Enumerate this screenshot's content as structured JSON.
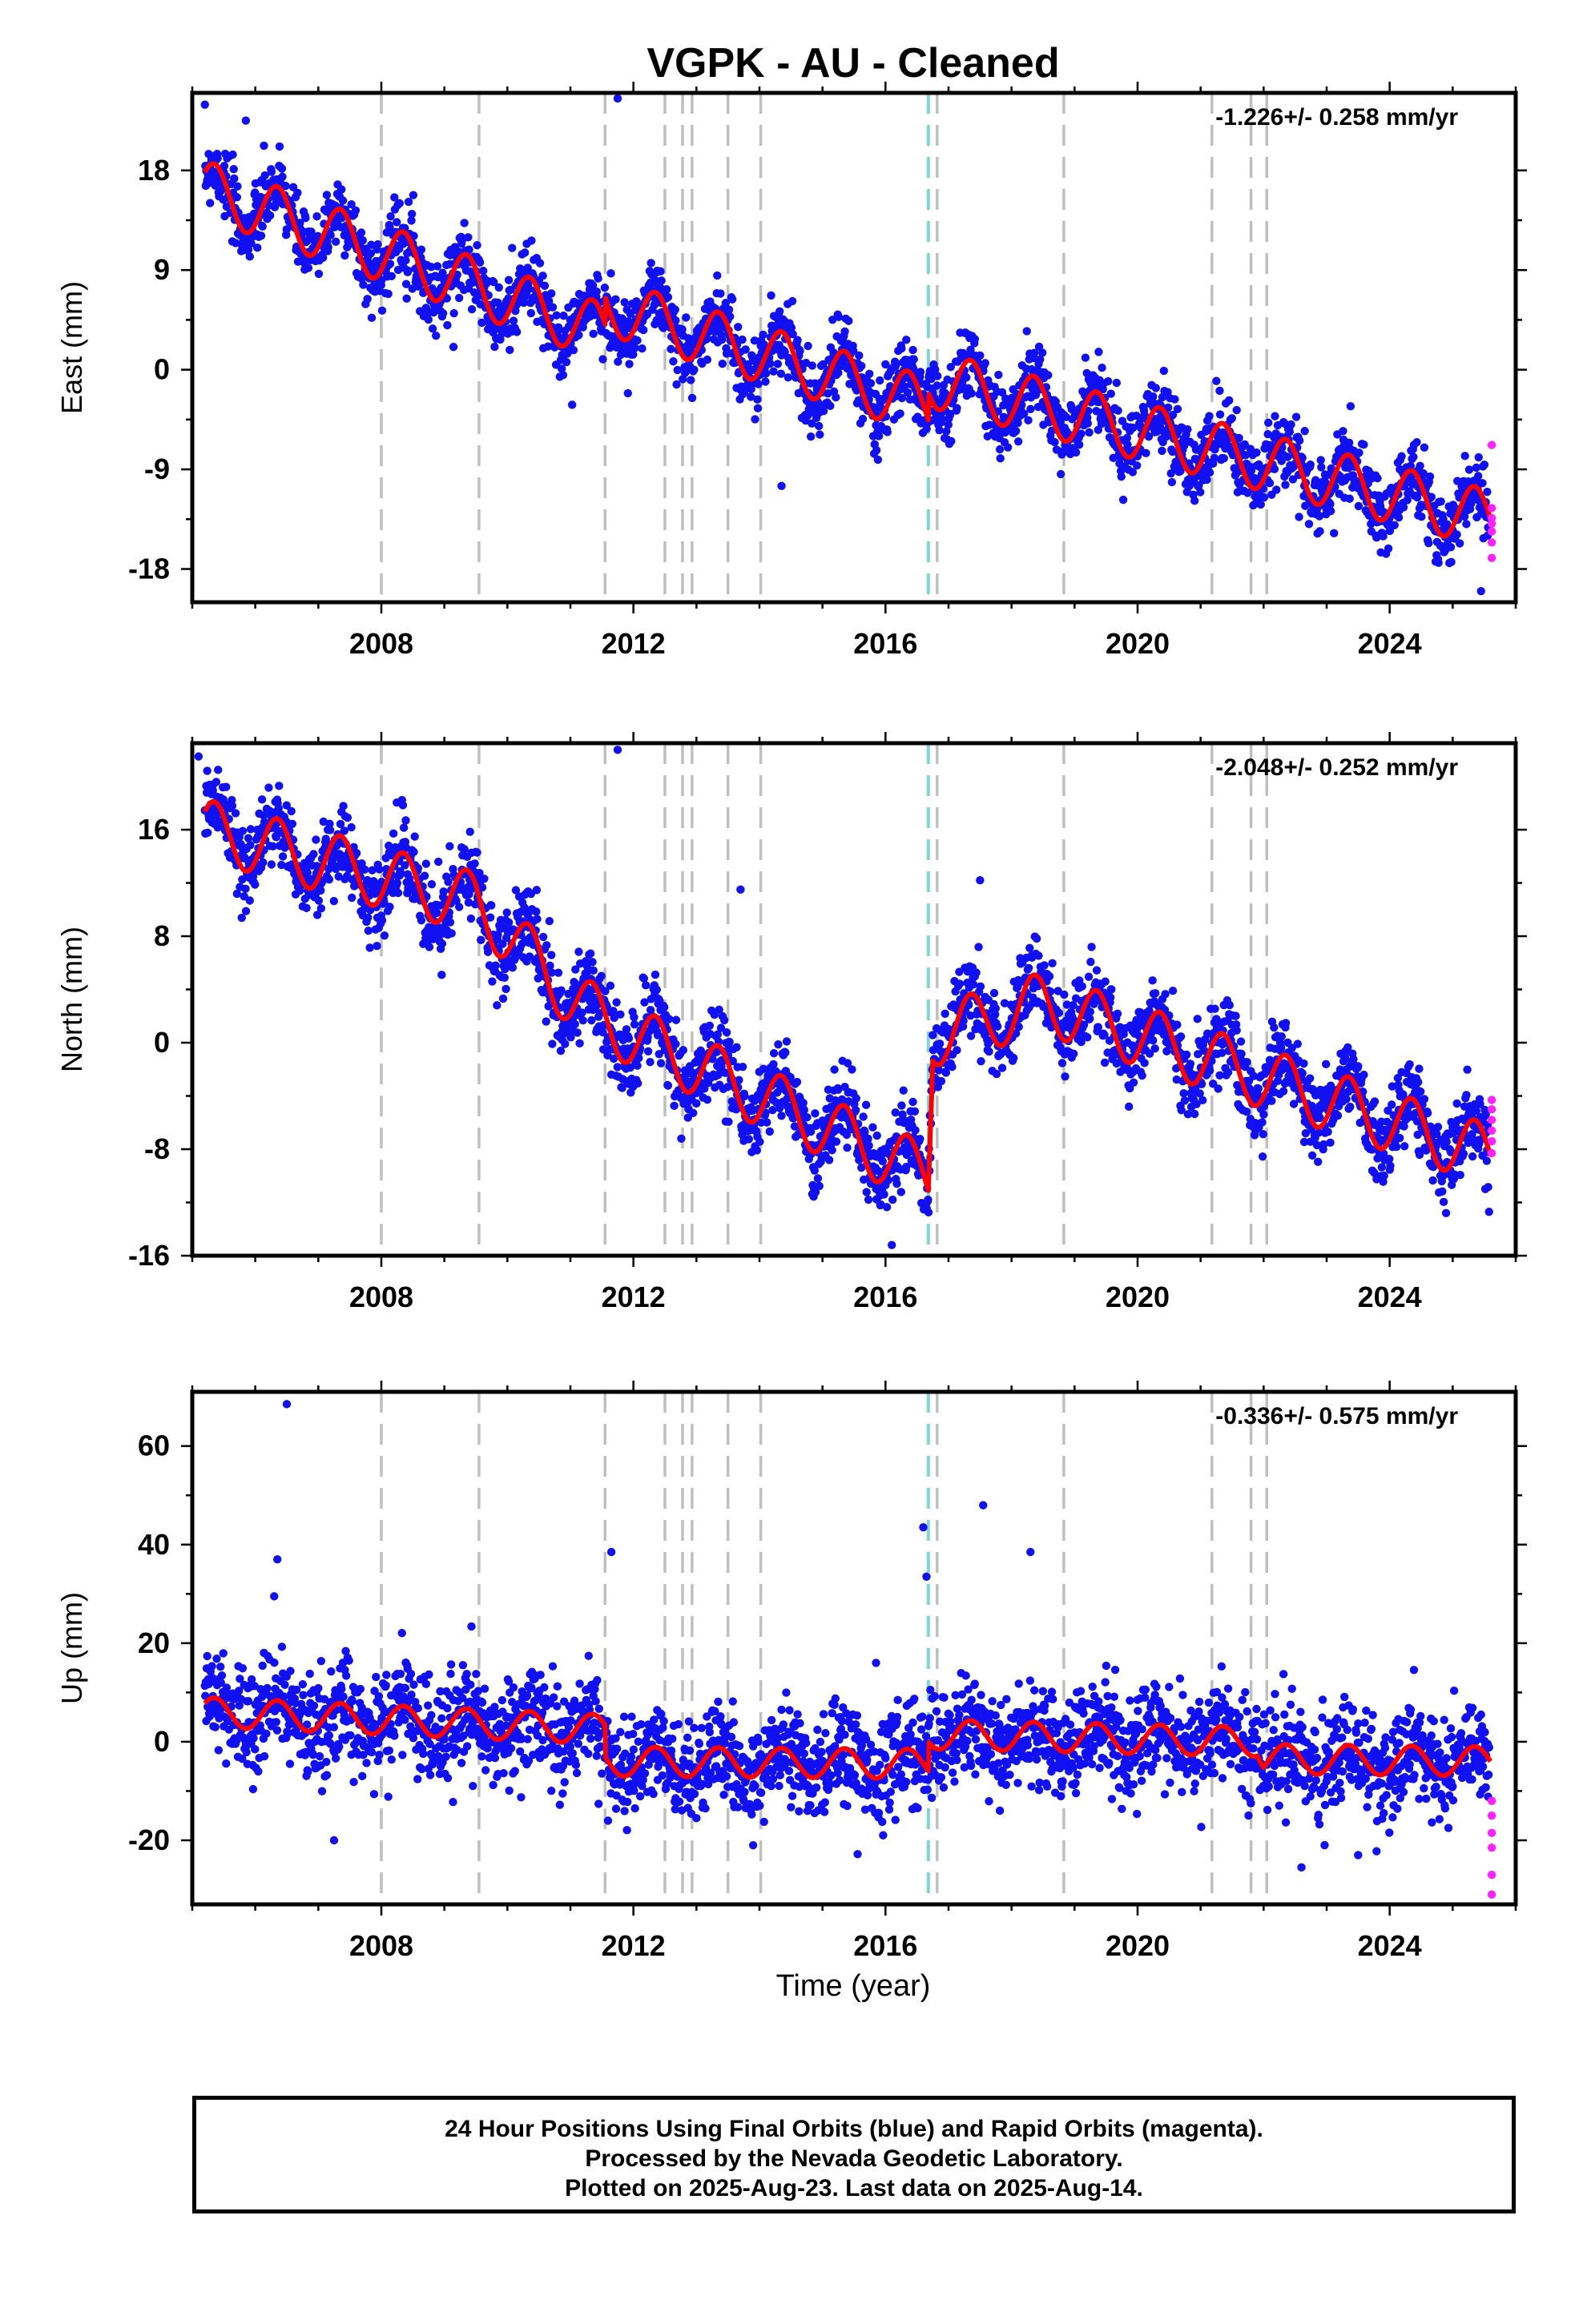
{
  "chart_data": {
    "type": "scatter",
    "title": "VGPK  - AU - Cleaned",
    "xlabel": "Time (year)",
    "xlim": [
      2005.0,
      2026.0
    ],
    "x_ticks": [
      2008,
      2012,
      2016,
      2020,
      2024
    ],
    "x_tick_labels": [
      "2008",
      "2012",
      "2016",
      "2020",
      "2024"
    ],
    "event_lines": [
      2008.0,
      2009.55,
      2011.55,
      2012.5,
      2012.78,
      2012.93,
      2013.5,
      2014.02,
      2016.82,
      2018.83,
      2021.18,
      2021.8,
      2022.05
    ],
    "earthquake_lines": [
      2016.68
    ],
    "legend_colors": {
      "final": "#1010f0",
      "rapid": "#ff22ff",
      "model": "#ff0000",
      "event": "#bfbfbf",
      "earthquake": "#7fd6d6"
    },
    "panels": [
      {
        "key": "east",
        "ylabel": "East (mm)",
        "ylim": [
          -21.0,
          25.0
        ],
        "y_ticks": [
          18,
          9,
          0,
          -9,
          -18
        ],
        "y_tick_labels": [
          "18",
          "9",
          "0",
          "-9",
          "-18"
        ],
        "rate_label": "-1.226+/- 0.258 mm/yr",
        "series": [
          {
            "name": "final",
            "type": "scatter",
            "trend": [
              [
                2005.2,
                16.3
              ],
              [
                2011.55,
                3.3
              ],
              [
                2011.56,
                5.8
              ],
              [
                2016.68,
                -3.3
              ],
              [
                2016.69,
                -0.8
              ],
              [
                2025.6,
                -13.5
              ]
            ],
            "amplitude": 2.4,
            "scatter_sd": 1.6
          },
          {
            "name": "model",
            "type": "line",
            "trend": [
              [
                2005.2,
                16.3
              ],
              [
                2011.55,
                3.3
              ],
              [
                2011.56,
                5.8
              ],
              [
                2016.68,
                -3.3
              ],
              [
                2016.69,
                -0.8
              ],
              [
                2025.6,
                -13.5
              ]
            ],
            "amplitude": 2.6
          },
          {
            "name": "rapid",
            "type": "scatter",
            "x": [
              2025.62,
              2025.62,
              2025.62,
              2025.62,
              2025.62,
              2025.62,
              2025.62
            ],
            "y": [
              -6.8,
              -12.5,
              -13.4,
              -13.9,
              -14.6,
              -15.6,
              -17.0
            ]
          }
        ],
        "outliers": [
          [
            2005.85,
            22.5
          ],
          [
            2011.75,
            24.5
          ],
          [
            2014.35,
            -10.5
          ],
          [
            2025.45,
            -20.0
          ]
        ]
      },
      {
        "key": "north",
        "ylabel": "North (mm)",
        "ylim": [
          -16.0,
          22.5
        ],
        "y_ticks": [
          16,
          8,
          0,
          -8,
          -16
        ],
        "y_tick_labels": [
          "16",
          "8",
          "0",
          "-8",
          "-16"
        ],
        "rate_label": "-2.048+/- 0.252 mm/yr",
        "series": [
          {
            "name": "final",
            "type": "scatter",
            "trend": [
              [
                2005.2,
                16.0
              ],
              [
                2009.5,
                10.5
              ],
              [
                2011.0,
                3.5
              ],
              [
                2011.55,
                1.5
              ],
              [
                2016.68,
                -10.0
              ],
              [
                2016.75,
                0.5
              ],
              [
                2018.5,
                3.0
              ],
              [
                2025.6,
                -8.5
              ]
            ],
            "amplitude": 2.2,
            "scatter_sd": 1.5
          },
          {
            "name": "model",
            "type": "line",
            "trend": [
              [
                2005.2,
                16.0
              ],
              [
                2009.5,
                10.5
              ],
              [
                2011.0,
                3.5
              ],
              [
                2011.55,
                1.5
              ],
              [
                2016.68,
                -10.0
              ],
              [
                2016.75,
                0.5
              ],
              [
                2018.5,
                3.0
              ],
              [
                2025.6,
                -8.5
              ]
            ],
            "amplitude": 2.3
          },
          {
            "name": "rapid",
            "type": "scatter",
            "x": [
              2025.62,
              2025.62,
              2025.62,
              2025.62,
              2025.62,
              2025.62
            ],
            "y": [
              -4.3,
              -5.0,
              -5.8,
              -6.6,
              -7.4,
              -8.3
            ]
          }
        ],
        "outliers": [
          [
            2005.1,
            21.5
          ],
          [
            2011.75,
            22.0
          ],
          [
            2013.7,
            11.5
          ],
          [
            2017.5,
            12.2
          ],
          [
            2016.1,
            -15.2
          ]
        ]
      },
      {
        "key": "up",
        "ylabel": "Up (mm)",
        "ylim": [
          -33.0,
          71.0
        ],
        "y_ticks": [
          60,
          40,
          20,
          0,
          -20
        ],
        "y_tick_labels": [
          "60",
          "40",
          "20",
          "0",
          "-20"
        ],
        "rate_label": "-0.336+/- 0.575 mm/yr",
        "series": [
          {
            "name": "final",
            "type": "scatter",
            "trend": [
              [
                2005.2,
                6.0
              ],
              [
                2011.55,
                2.5
              ],
              [
                2011.56,
                -4.0
              ],
              [
                2016.68,
                -4.5
              ],
              [
                2016.69,
                1.5
              ],
              [
                2021.9,
                0.0
              ],
              [
                2022.0,
                -3.5
              ],
              [
                2025.6,
                -4.0
              ]
            ],
            "amplitude": 3.0,
            "scatter_sd": 5.0
          },
          {
            "name": "model",
            "type": "line",
            "trend": [
              [
                2005.2,
                6.0
              ],
              [
                2011.55,
                2.5
              ],
              [
                2011.56,
                -4.0
              ],
              [
                2016.68,
                -4.5
              ],
              [
                2016.69,
                1.5
              ],
              [
                2021.9,
                0.0
              ],
              [
                2022.0,
                -3.5
              ],
              [
                2025.6,
                -4.0
              ]
            ],
            "amplitude": 3.0
          },
          {
            "name": "rapid",
            "type": "scatter",
            "x": [
              2025.62,
              2025.62,
              2025.62,
              2025.62,
              2025.62,
              2025.62
            ],
            "y": [
              -12.0,
              -15.0,
              -18.5,
              -21.5,
              -27.0,
              -31.0
            ]
          }
        ],
        "outliers": [
          [
            2006.5,
            68.5
          ],
          [
            2006.35,
            37.0
          ],
          [
            2006.3,
            29.5
          ],
          [
            2016.6,
            43.5
          ],
          [
            2016.65,
            33.5
          ],
          [
            2017.55,
            48.0
          ],
          [
            2018.3,
            38.5
          ],
          [
            2011.65,
            38.5
          ],
          [
            2015.85,
            16.0
          ],
          [
            2022.6,
            -25.5
          ],
          [
            2023.5,
            -23.0
          ],
          [
            2007.25,
            -20.0
          ],
          [
            2013.9,
            -21.0
          ]
        ]
      }
    ]
  },
  "footer": {
    "line1": "24 Hour Positions Using Final Orbits (blue) and Rapid Orbits (magenta).",
    "line2": "Processed by the Nevada Geodetic Laboratory.",
    "line3": "Plotted on 2025-Aug-23. Last data on 2025-Aug-14."
  }
}
